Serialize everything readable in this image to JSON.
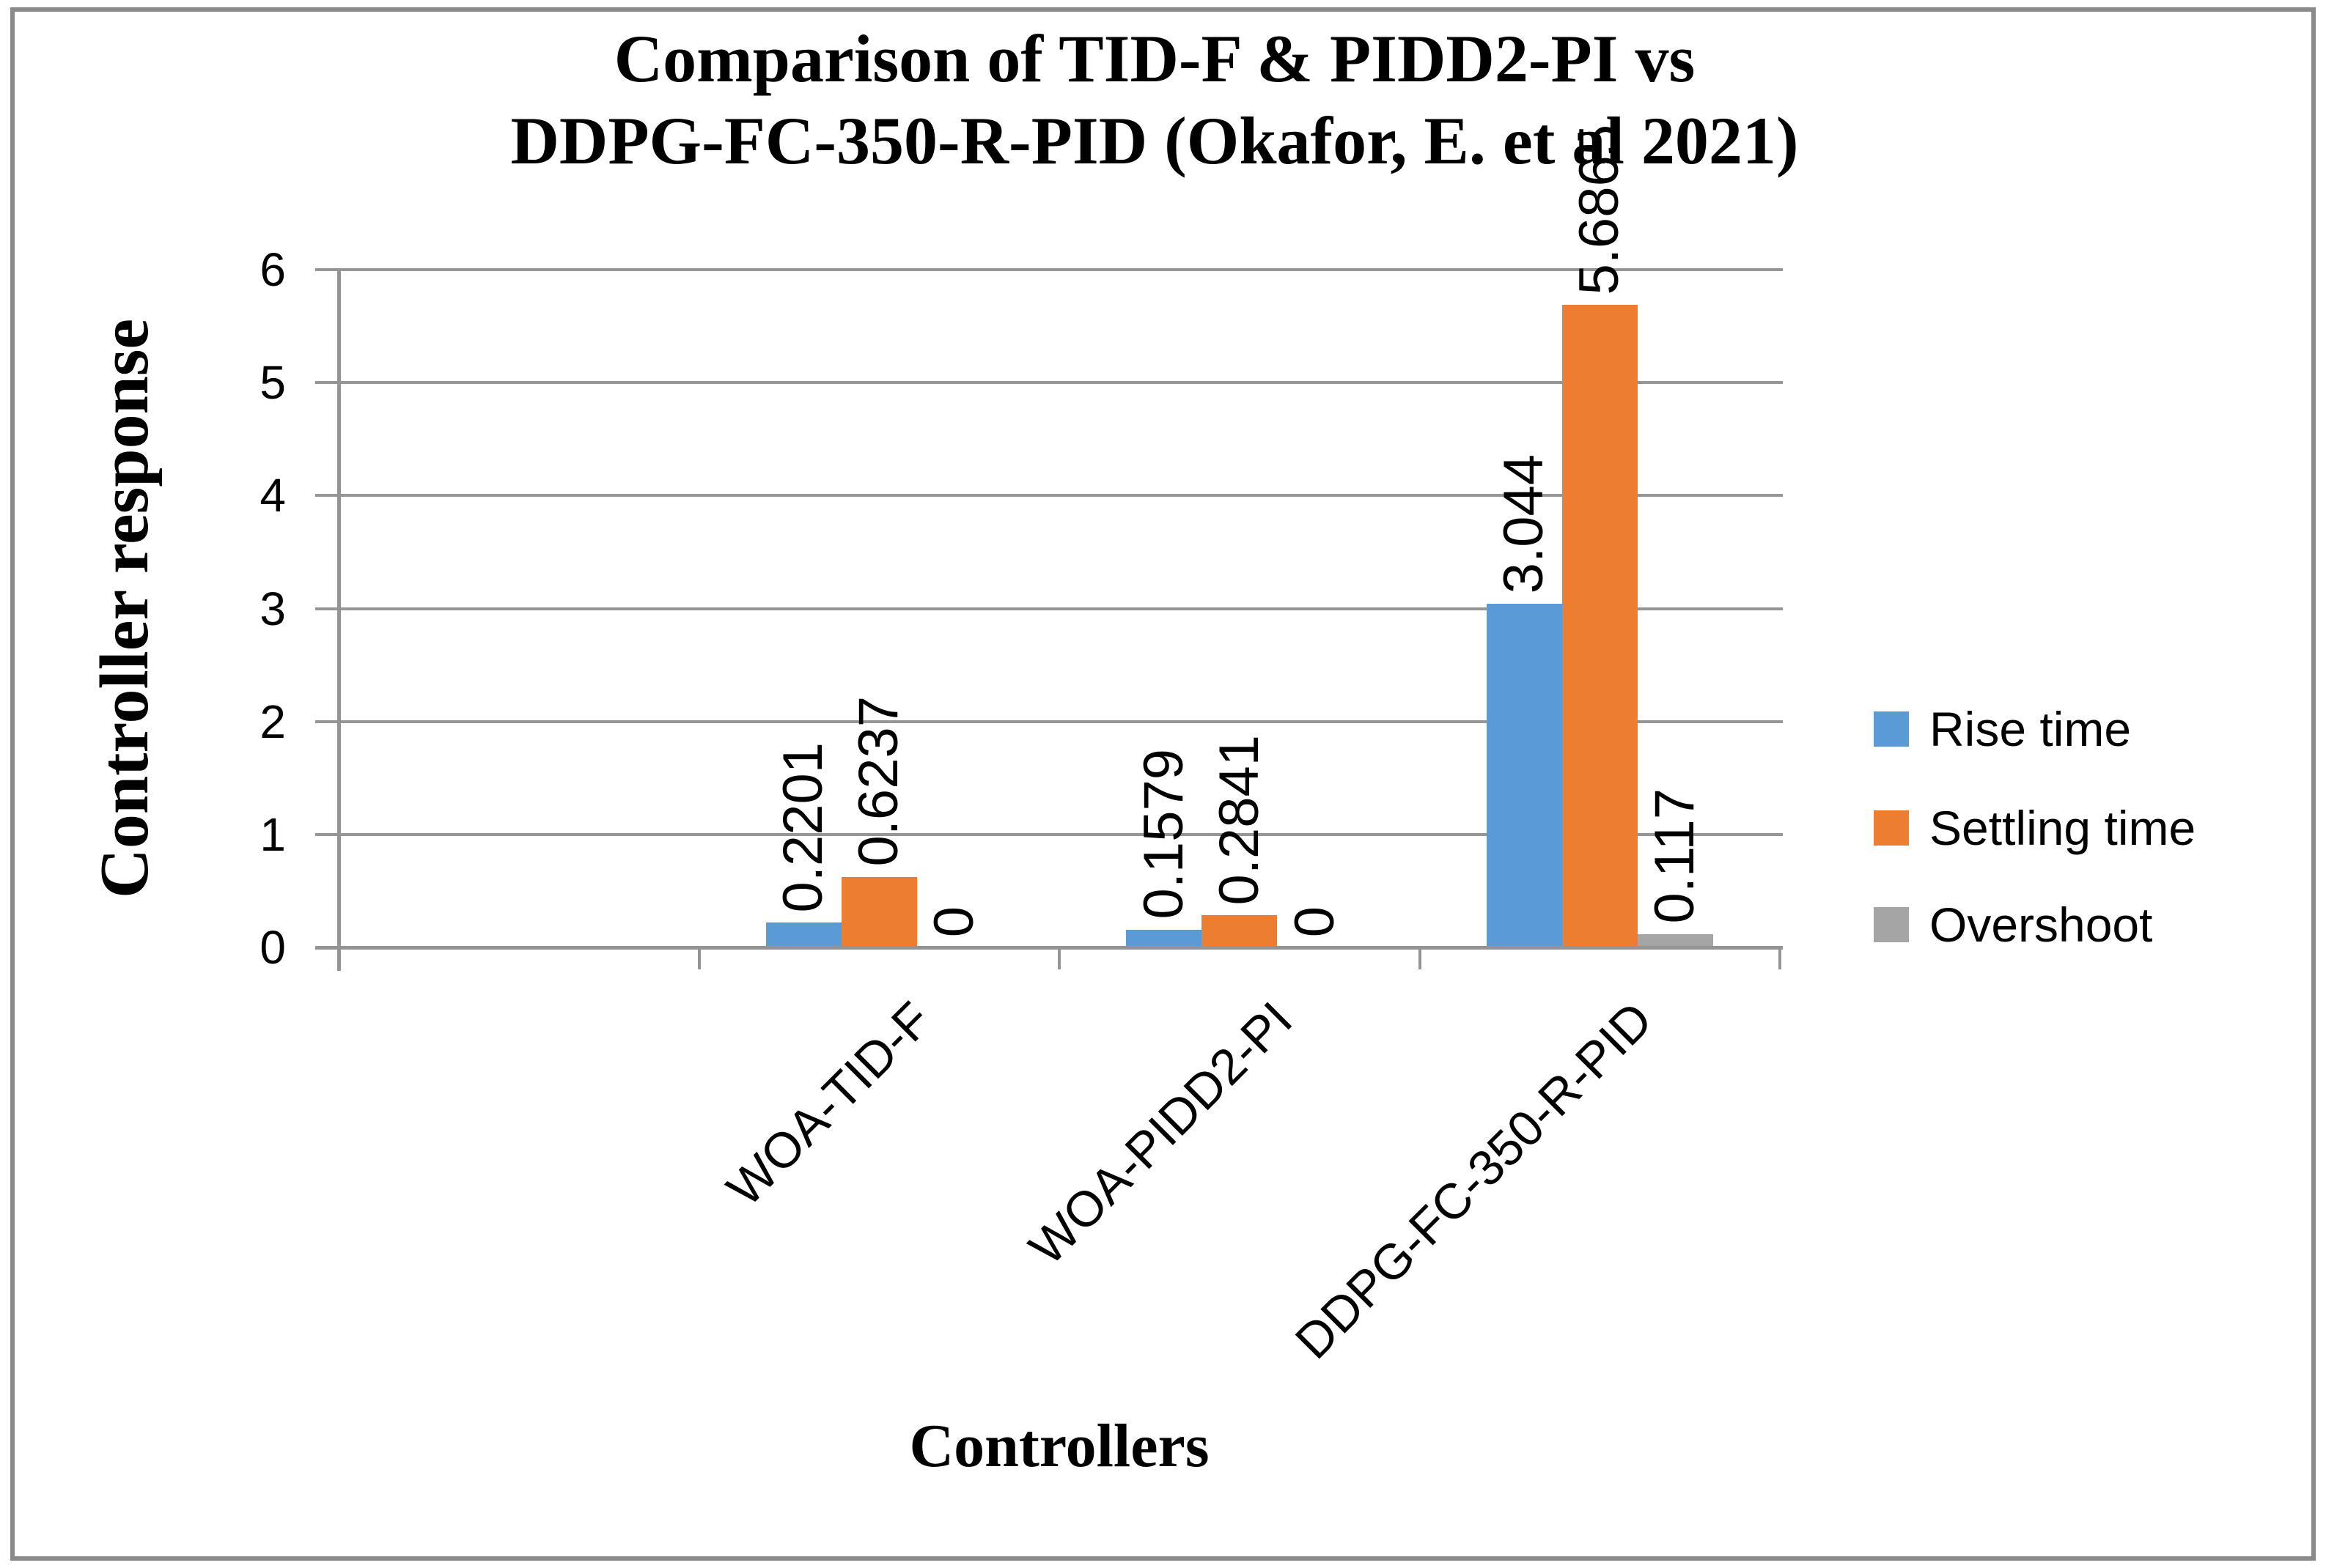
{
  "title_lines": [
    "Comparison of TID-F & PIDD2-PI vs",
    "DDPG-FC-350-R-PID (Okafor, E. et al 2021)"
  ],
  "chart_data": {
    "type": "bar",
    "title": "Comparison of TID-F & PIDD2-PI vs DDPG-FC-350-R-PID (Okafor, E. et al 2021)",
    "xlabel": "Controllers",
    "ylabel": "Controller response",
    "ylim": [
      0,
      6
    ],
    "yticks": [
      0,
      1,
      2,
      3,
      4,
      5,
      6
    ],
    "grid": true,
    "legend_position": "right",
    "leading_empty_slot": true,
    "categories": [
      "WOA-TID-F",
      "WOA-PIDD2-PI",
      "DDPG-FC-350-R-PID"
    ],
    "series": [
      {
        "name": "Rise time",
        "color": "#5B9BD5",
        "values": [
          0.2201,
          0.1579,
          3.044
        ],
        "data_labels": [
          "0.2201",
          "0.1579",
          "3.044"
        ]
      },
      {
        "name": "Settling time",
        "color": "#ED7D31",
        "values": [
          0.6237,
          0.2841,
          5.6865
        ],
        "data_labels": [
          "0.6237",
          "0.2841",
          "5.6865"
        ]
      },
      {
        "name": "Overshoot",
        "color": "#A5A5A5",
        "values": [
          0,
          0,
          0.117
        ],
        "data_labels": [
          "0",
          "0",
          "0.117"
        ]
      }
    ]
  }
}
